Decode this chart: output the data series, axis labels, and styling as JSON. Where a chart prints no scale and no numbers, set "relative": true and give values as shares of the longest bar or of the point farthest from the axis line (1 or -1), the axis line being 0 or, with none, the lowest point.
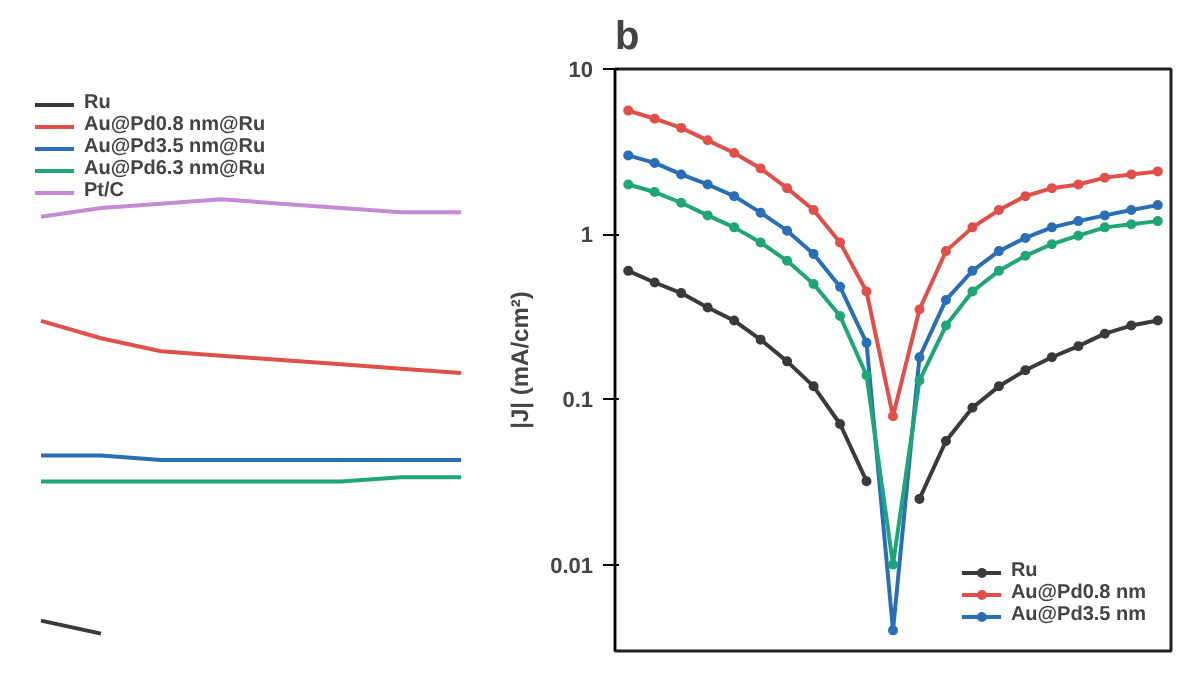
{
  "chart_data": [
    {
      "type": "line",
      "relative": true,
      "categories": [
        null,
        null,
        null,
        null,
        null,
        null,
        null,
        null
      ],
      "legend": "top left",
      "marker": "none",
      "series": [
        {
          "name": "Ru",
          "color": "#3a3a3a",
          "values": [
            0.03,
            0.0,
            null,
            null,
            null,
            null,
            null,
            null
          ]
        },
        {
          "name": "Au@Pd0.8 nm@Ru",
          "color": "#e0504a",
          "values": [
            0.72,
            0.68,
            0.65,
            0.64,
            0.63,
            0.62,
            0.61,
            0.6
          ]
        },
        {
          "name": "Au@Pd3.5 nm@Ru",
          "color": "#2a6fb5",
          "values": [
            0.41,
            0.41,
            0.4,
            0.4,
            0.4,
            0.4,
            0.4,
            0.4
          ]
        },
        {
          "name": "Au@Pd6.3 nm@Ru",
          "color": "#1fa57a",
          "values": [
            0.35,
            0.35,
            0.35,
            0.35,
            0.35,
            0.35,
            0.36,
            0.36
          ]
        },
        {
          "name": "Pt/C",
          "color": "#c58ad6",
          "values": [
            0.96,
            0.98,
            0.99,
            1.0,
            0.99,
            0.98,
            0.97,
            0.97
          ]
        }
      ]
    },
    {
      "type": "line",
      "title": "b",
      "ylabel": "|J| (mA/cm²)",
      "log": "y",
      "ylim": [
        0.003,
        10
      ],
      "yticks": [
        0.01,
        0.1,
        1,
        10
      ],
      "legend": "bottom right",
      "marker": "circle",
      "categories": [
        null,
        null,
        null,
        null,
        null,
        null,
        null,
        null,
        null,
        null,
        null,
        null,
        null,
        null,
        null,
        null,
        null,
        null,
        null,
        null,
        null
      ],
      "series": [
        {
          "name": "Ru",
          "color": "#3a3a3a",
          "values": [
            0.6,
            0.51,
            0.44,
            0.36,
            0.3,
            0.23,
            0.17,
            0.12,
            0.071,
            0.032,
            null,
            0.025,
            0.056,
            0.089,
            0.12,
            0.15,
            0.18,
            0.21,
            0.25,
            0.28,
            0.3
          ]
        },
        {
          "name": "Au@Pd0.8 nm",
          "color": "#e0504a",
          "values": [
            5.6,
            5.0,
            4.4,
            3.7,
            3.1,
            2.5,
            1.9,
            1.4,
            0.89,
            0.45,
            0.079,
            0.35,
            0.79,
            1.1,
            1.4,
            1.7,
            1.9,
            2.0,
            2.2,
            2.3,
            2.4
          ]
        },
        {
          "name": "Au@Pd3.5 nm",
          "color": "#2a6fb5",
          "values": [
            3.0,
            2.7,
            2.3,
            2.0,
            1.7,
            1.35,
            1.05,
            0.76,
            0.48,
            0.22,
            0.004,
            0.18,
            0.4,
            0.6,
            0.79,
            0.95,
            1.1,
            1.2,
            1.3,
            1.4,
            1.5
          ]
        },
        {
          "color": "#1fa57a",
          "values": [
            2.0,
            1.8,
            1.55,
            1.3,
            1.1,
            0.89,
            0.69,
            0.5,
            0.32,
            0.14,
            0.01,
            0.13,
            0.28,
            0.45,
            0.6,
            0.74,
            0.87,
            0.98,
            1.1,
            1.15,
            1.2
          ]
        }
      ]
    }
  ]
}
